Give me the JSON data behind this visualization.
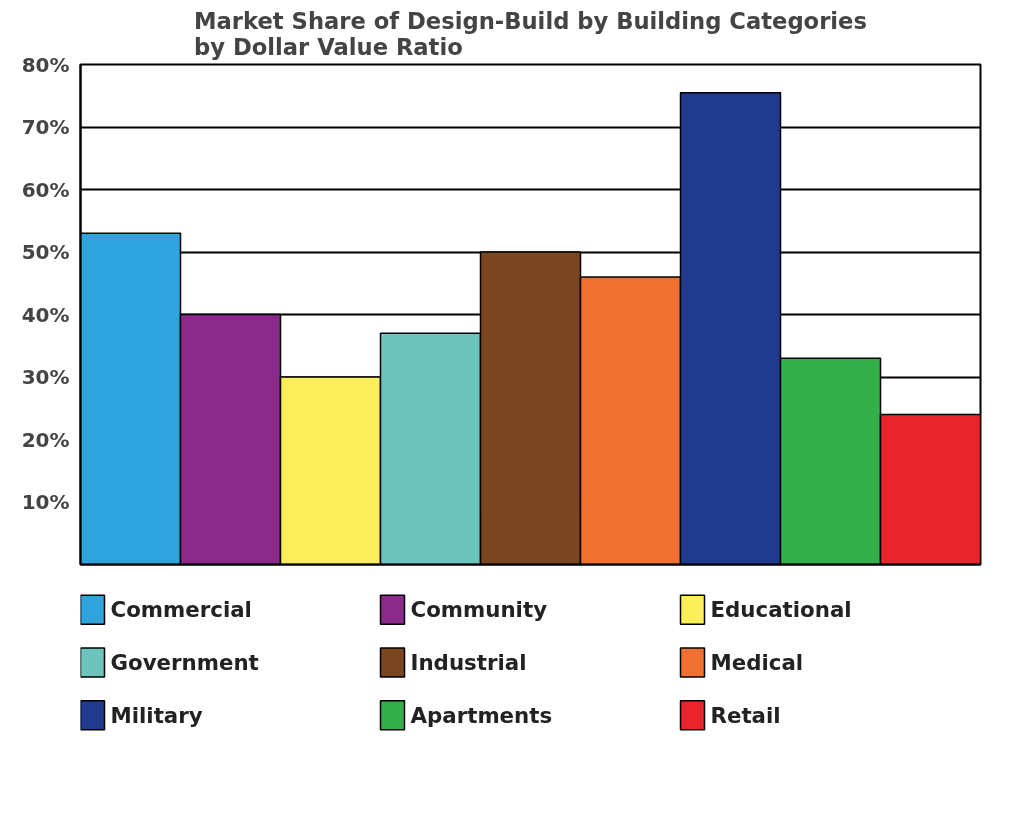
{
  "chart_data": {
    "type": "bar",
    "title": "Market Share of Design-Build by Building Categories\nby Dollar Value Ratio",
    "categories": [
      null,
      null,
      null,
      null,
      null,
      null,
      null,
      null,
      null
    ],
    "series": [
      {
        "name": "Commercial",
        "color": "#2ea3dc",
        "values": [
          53,
          null,
          null,
          null,
          null,
          null,
          null,
          null,
          null
        ]
      },
      {
        "name": "Community",
        "color": "#8b2a8b",
        "values": [
          null,
          40,
          null,
          null,
          null,
          null,
          null,
          null,
          null
        ]
      },
      {
        "name": "Educational",
        "color": "#fbee5a",
        "values": [
          null,
          null,
          30,
          null,
          null,
          null,
          null,
          null,
          null
        ]
      },
      {
        "name": "Government",
        "color": "#6cc4be",
        "values": [
          null,
          null,
          null,
          37,
          null,
          null,
          null,
          null,
          null
        ]
      },
      {
        "name": "Industrial",
        "color": "#7b4520",
        "values": [
          null,
          null,
          null,
          null,
          50,
          null,
          null,
          null,
          null
        ]
      },
      {
        "name": "Medical",
        "color": "#f07030",
        "values": [
          null,
          null,
          null,
          null,
          null,
          46,
          null,
          null,
          null
        ]
      },
      {
        "name": "Military",
        "color": "#1f3a8f",
        "values": [
          null,
          null,
          null,
          null,
          null,
          null,
          75.5,
          null,
          null
        ]
      },
      {
        "name": "Apartments",
        "color": "#34b04a",
        "values": [
          null,
          null,
          null,
          null,
          null,
          null,
          null,
          33,
          null
        ]
      },
      {
        "name": "Retail",
        "color": "#e8252b",
        "values": [
          null,
          null,
          null,
          null,
          null,
          null,
          null,
          null,
          24
        ]
      }
    ],
    "ylim": [
      0,
      80
    ],
    "yticks": [
      {
        "value": 0,
        "label": null
      },
      {
        "value": 10,
        "label": "10%"
      },
      {
        "value": 20,
        "label": "20%"
      },
      {
        "value": 30,
        "label": "30%"
      },
      {
        "value": 40,
        "label": "40%"
      },
      {
        "value": 50,
        "label": "50%"
      },
      {
        "value": 60,
        "label": "60%"
      },
      {
        "value": 70,
        "label": "70%"
      },
      {
        "value": 80,
        "label": "80%"
      }
    ],
    "grid": "y",
    "legend": "bottom"
  }
}
